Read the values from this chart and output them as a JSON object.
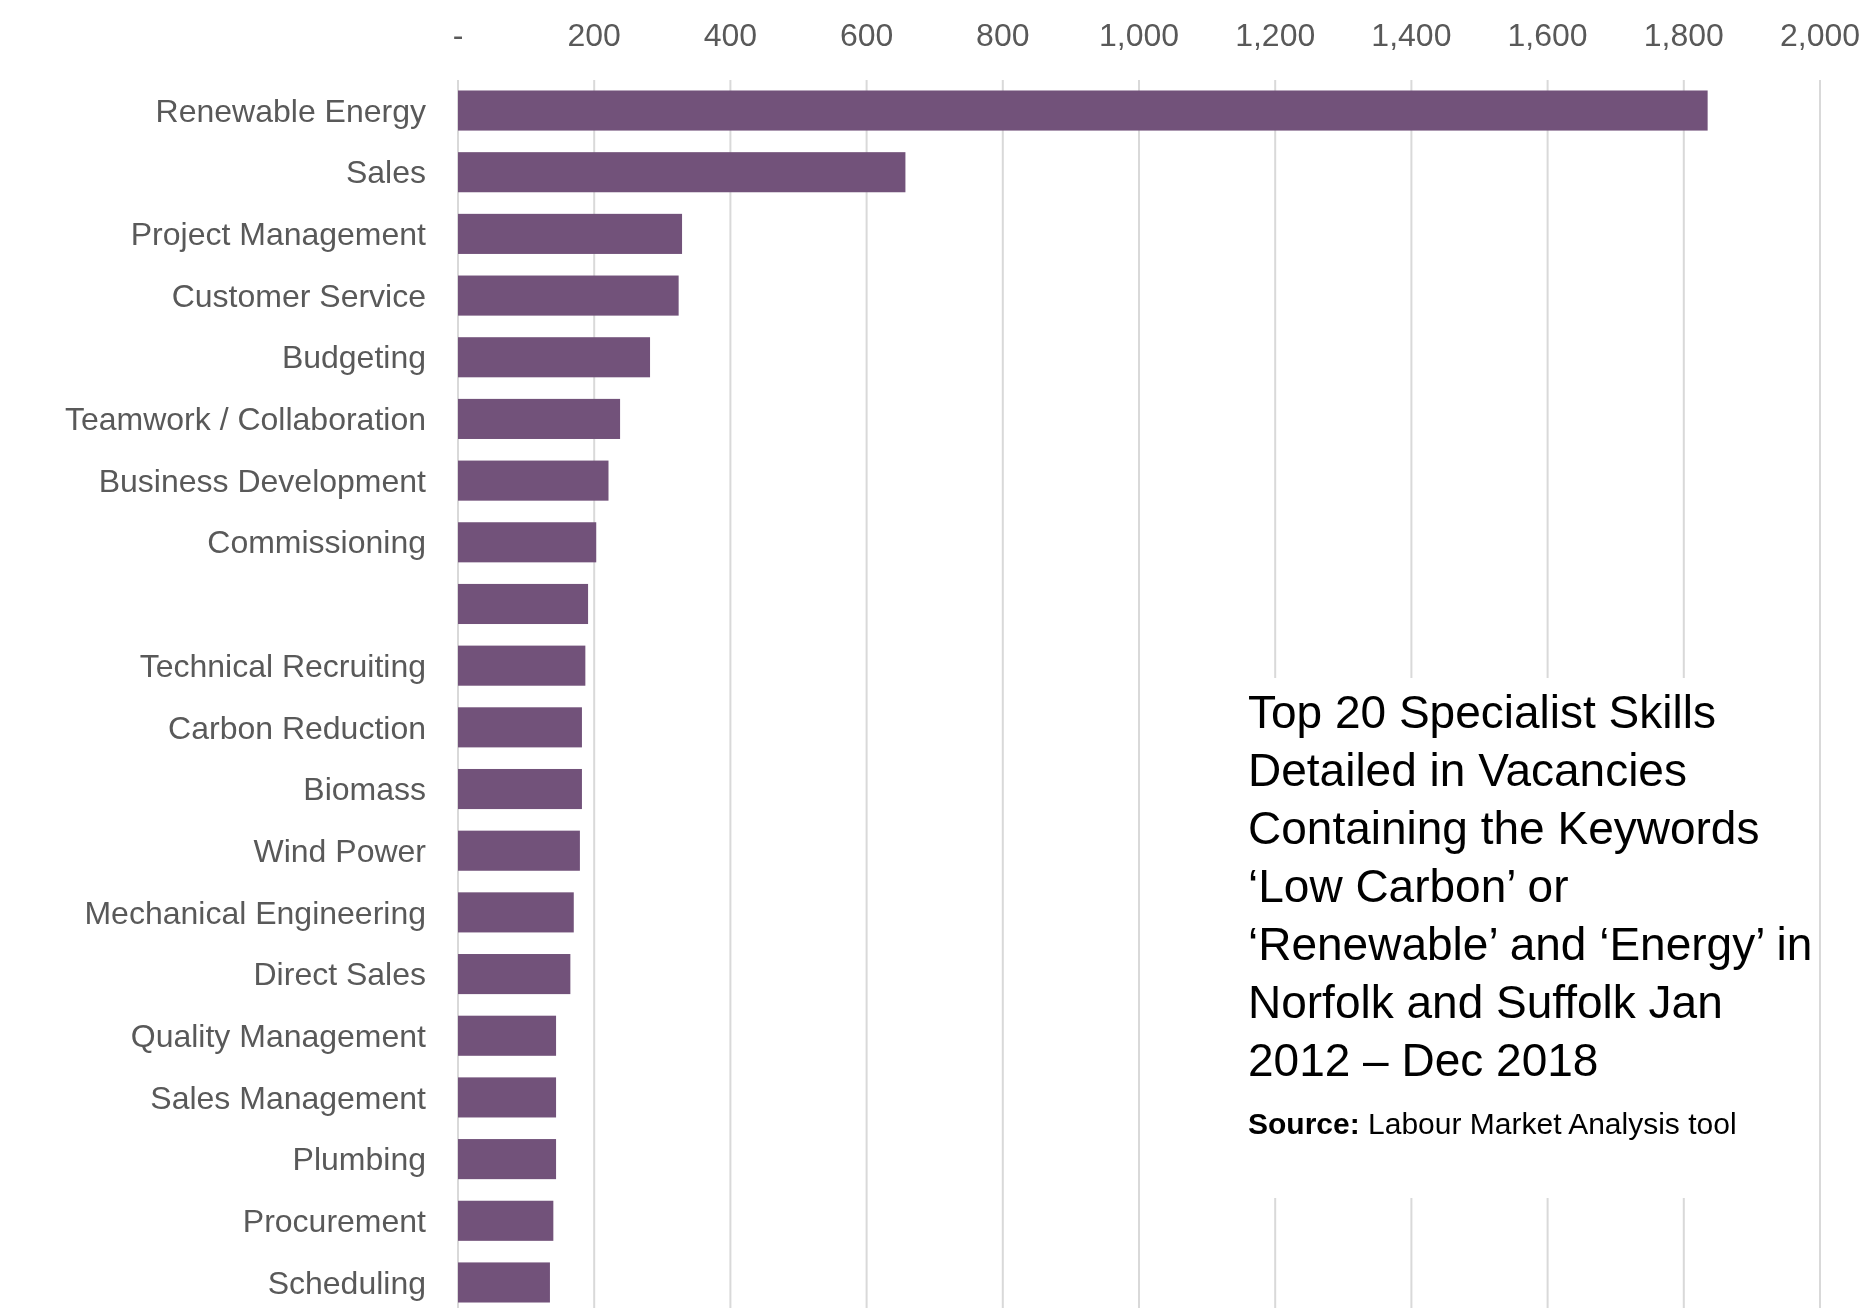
{
  "chart_data": {
    "type": "bar",
    "orientation": "horizontal",
    "title": "Top 20 Specialist Skills Detailed in Vacancies Containing the Keywords ‘Low Carbon’ or ‘Renewable’ and ‘Energy’ in Norfolk and Suffolk Jan 2012 – Dec 2018",
    "categories": [
      "Renewable Energy",
      "Sales",
      "Project Management",
      "Customer Service",
      "Budgeting",
      "Teamwork / Collaboration",
      "Business Development",
      "Commissioning",
      null,
      "Technical Recruiting",
      "Carbon Reduction",
      "Biomass",
      "Wind Power",
      "Mechanical Engineering",
      "Direct Sales",
      "Quality Management",
      "Sales Management",
      "Plumbing",
      "Procurement",
      "Scheduling"
    ],
    "values": [
      1835,
      657,
      329,
      324,
      282,
      238,
      221,
      203,
      191,
      187,
      182,
      182,
      179,
      170,
      165,
      144,
      144,
      144,
      140,
      135
    ],
    "color": "#72527a",
    "xlim": [
      0,
      2000
    ],
    "xticks": [
      {
        "value": 0,
        "label": "-"
      },
      {
        "value": 200,
        "label": "200"
      },
      {
        "value": 400,
        "label": "400"
      },
      {
        "value": 600,
        "label": "600"
      },
      {
        "value": 800,
        "label": "800"
      },
      {
        "value": 1000,
        "label": "1,000"
      },
      {
        "value": 1200,
        "label": "1,200"
      },
      {
        "value": 1400,
        "label": "1,400"
      },
      {
        "value": 1600,
        "label": "1,600"
      },
      {
        "value": 1800,
        "label": "1,800"
      },
      {
        "value": 2000,
        "label": "2,000"
      }
    ],
    "grid": "x",
    "annotations": [
      "Source: Labour Market Analysis tool"
    ]
  }
}
